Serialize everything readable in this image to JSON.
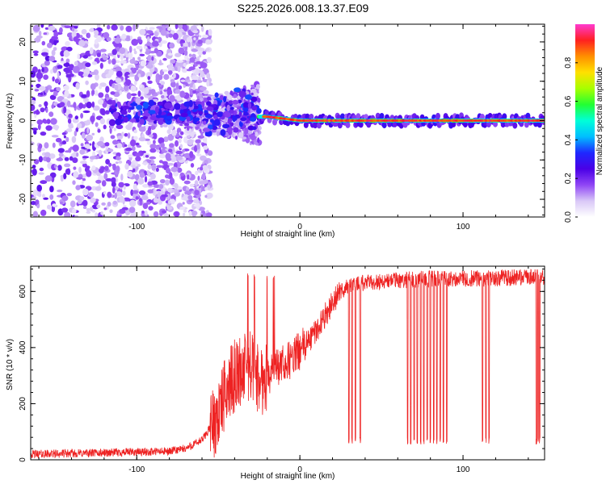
{
  "figure": {
    "title": "S225.2026.008.13.37.E09"
  },
  "colors": {
    "snr_line": "#ee2222",
    "frame": "#000000",
    "colormap": [
      "#ffffff",
      "#d9c8f7",
      "#8f45f5",
      "#4a00e6",
      "#1e28ff",
      "#00bfff",
      "#00ffd8",
      "#22ff33",
      "#a8ff00",
      "#ffe000",
      "#ff9000",
      "#ff2020",
      "#ff3ad0"
    ]
  },
  "chart_data": [
    {
      "type": "heatmap",
      "title": "S225.2026.008.13.37.E09",
      "xlabel": "Height of straight line (km)",
      "ylabel": "Frequency (Hz)",
      "xlim": [
        -165,
        150
      ],
      "ylim": [
        -24.5,
        24.5
      ],
      "xticks": [
        -100,
        0,
        100
      ],
      "yticks": [
        -20,
        -10,
        0,
        10,
        20
      ],
      "colorbar": {
        "label": "Normalized spectral amplitude",
        "range": [
          0,
          1
        ],
        "ticks": [
          "0.0",
          "0.2",
          "0.4",
          "0.6",
          "0.8"
        ],
        "tick_values": [
          0.0,
          0.2,
          0.4,
          0.6,
          0.8
        ]
      },
      "ridge": {
        "description_x": [
          -28,
          -20,
          -10,
          0,
          50,
          100,
          150
        ],
        "frequency_hz": [
          1.0,
          1.0,
          0.5,
          0.0,
          0.0,
          0.0,
          0.0
        ],
        "amplitude_on_ridge": 0.9
      }
    },
    {
      "type": "line",
      "xlabel": "Height of straight line (km)",
      "ylabel": "SNR (10 * v/v)",
      "xlim": [
        -165,
        150
      ],
      "ylim": [
        0,
        690
      ],
      "xticks": [
        -100,
        0,
        100
      ],
      "yticks": [
        0,
        200,
        400,
        600
      ],
      "series": [
        {
          "x": [
            -165,
            -120,
            -80,
            -70,
            -60,
            -50,
            -45,
            -40,
            -35,
            -30,
            -25,
            -20,
            -15,
            -10,
            -5,
            0,
            5,
            10,
            15,
            20,
            25,
            30,
            40,
            50,
            60,
            80,
            100,
            120,
            140,
            150
          ],
          "y": [
            20,
            25,
            30,
            40,
            70,
            160,
            250,
            300,
            320,
            340,
            280,
            300,
            320,
            340,
            360,
            390,
            420,
            460,
            510,
            560,
            600,
            620,
            630,
            635,
            640,
            645,
            645,
            648,
            650,
            650
          ]
        }
      ],
      "dropouts_x": [
        30,
        32,
        34,
        37,
        66,
        68,
        70,
        72,
        74,
        76,
        78,
        80,
        82,
        84,
        86,
        88,
        90,
        112,
        114,
        116,
        145,
        146,
        147
      ],
      "spikes_x": [
        -32,
        -28,
        -20,
        -16
      ]
    }
  ]
}
